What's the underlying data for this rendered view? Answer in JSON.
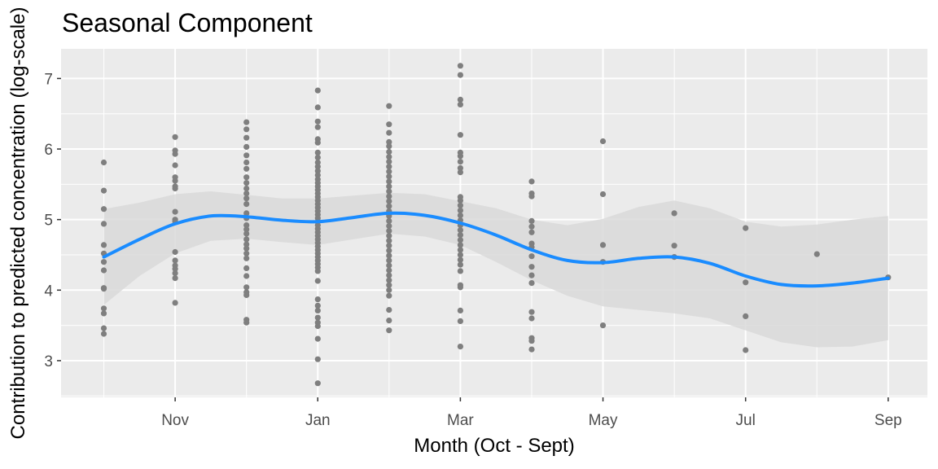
{
  "chart_data": {
    "type": "scatter",
    "title": "Seasonal Component",
    "xlabel": "Month (Oct - Sept)",
    "ylabel": "Contribution to predicted concentration (log-scale)",
    "x_ticks": [
      "Nov",
      "Jan",
      "Mar",
      "May",
      "Jul",
      "Sep"
    ],
    "x_tick_values": [
      11,
      13,
      15,
      17,
      19,
      21
    ],
    "y_ticks": [
      "3",
      "4",
      "5",
      "6",
      "7"
    ],
    "y_tick_values": [
      3,
      4,
      5,
      6,
      7
    ],
    "xlim": [
      9.4,
      21.55
    ],
    "ylim": [
      2.48,
      7.42
    ],
    "grid": true,
    "legend": "none",
    "colors": {
      "panel": "#ebebeb",
      "grid": "#ffffff",
      "points": "#7f7f7f",
      "smooth": "#1a8cff",
      "ribbon": "#d9d9d9"
    },
    "points": [
      {
        "x": 10,
        "y": [
          5.81,
          5.41,
          5.15,
          4.94,
          4.64,
          4.52,
          4.4,
          4.28,
          4.03,
          4.02,
          3.74,
          3.67,
          3.46,
          3.38
        ]
      },
      {
        "x": 11,
        "y": [
          6.17,
          5.98,
          5.93,
          5.77,
          5.6,
          5.55,
          5.47,
          5.44,
          5.11,
          5.0,
          4.97,
          4.54,
          4.42,
          4.35,
          4.3,
          4.24,
          4.17,
          3.82
        ]
      },
      {
        "x": 12,
        "y": [
          6.38,
          6.28,
          6.16,
          6.03,
          5.91,
          5.81,
          5.72,
          5.6,
          5.52,
          5.44,
          5.37,
          5.3,
          5.22,
          5.09,
          5.02,
          4.92,
          4.86,
          4.8,
          4.72,
          4.65,
          4.59,
          4.52,
          4.45,
          4.31,
          4.2,
          4.04,
          3.97,
          3.93,
          3.58,
          3.54
        ]
      },
      {
        "x": 13,
        "y": [
          6.83,
          6.59,
          6.39,
          6.31,
          6.14,
          6.09,
          5.95,
          5.88,
          5.81,
          5.75,
          5.69,
          5.63,
          5.57,
          5.52,
          5.47,
          5.42,
          5.37,
          5.32,
          5.27,
          5.22,
          5.17,
          5.12,
          5.07,
          5.02,
          4.97,
          4.92,
          4.87,
          4.82,
          4.77,
          4.72,
          4.67,
          4.62,
          4.57,
          4.52,
          4.47,
          4.42,
          4.37,
          4.32,
          4.27,
          4.13,
          3.87,
          3.78,
          3.71,
          3.61,
          3.54,
          3.49,
          3.31,
          3.02,
          2.68
        ]
      },
      {
        "x": 14,
        "y": [
          6.61,
          6.35,
          6.23,
          6.1,
          6.04,
          5.96,
          5.89,
          5.82,
          5.75,
          5.68,
          5.61,
          5.54,
          5.47,
          5.4,
          5.33,
          5.26,
          5.19,
          5.12,
          5.05,
          4.98,
          4.91,
          4.84,
          4.77,
          4.7,
          4.63,
          4.56,
          4.49,
          4.42,
          4.35,
          4.28,
          4.21,
          4.14,
          4.07,
          4.0,
          3.92,
          3.72,
          3.57,
          3.43
        ]
      },
      {
        "x": 15,
        "y": [
          7.18,
          7.05,
          6.7,
          6.63,
          6.2,
          5.95,
          5.9,
          5.82,
          5.73,
          5.67,
          5.32,
          5.27,
          5.2,
          5.13,
          5.06,
          4.99,
          4.92,
          4.85,
          4.78,
          4.71,
          4.64,
          4.57,
          4.5,
          4.43,
          4.36,
          4.27,
          4.07,
          4.04,
          3.71,
          3.56,
          3.2
        ]
      },
      {
        "x": 16,
        "y": [
          5.54,
          5.37,
          5.33,
          4.98,
          4.9,
          4.82,
          4.66,
          4.61,
          4.48,
          4.33,
          4.21,
          4.1,
          3.69,
          3.6,
          3.32,
          3.28,
          3.16
        ]
      },
      {
        "x": 17,
        "y": [
          6.11,
          5.36,
          4.64,
          4.4,
          3.5
        ]
      },
      {
        "x": 18,
        "y": [
          5.09,
          4.63,
          4.47
        ]
      },
      {
        "x": 19,
        "y": [
          4.88,
          4.11,
          3.63,
          3.15
        ]
      },
      {
        "x": 20,
        "y": [
          4.51
        ]
      },
      {
        "x": 21,
        "y": [
          4.18
        ]
      }
    ],
    "smooth": {
      "x": [
        10,
        10.5,
        11,
        11.5,
        12,
        12.5,
        13,
        13.5,
        14,
        14.5,
        15,
        15.5,
        16,
        16.5,
        17,
        17.5,
        18,
        18.5,
        19,
        19.5,
        20,
        20.5,
        21
      ],
      "y": [
        4.47,
        4.72,
        4.94,
        5.05,
        5.04,
        4.99,
        4.97,
        5.03,
        5.09,
        5.06,
        4.95,
        4.78,
        4.57,
        4.42,
        4.39,
        4.45,
        4.47,
        4.38,
        4.2,
        4.08,
        4.06,
        4.1,
        4.17
      ],
      "lower": [
        3.79,
        4.2,
        4.52,
        4.7,
        4.73,
        4.68,
        4.64,
        4.72,
        4.8,
        4.76,
        4.64,
        4.4,
        4.14,
        3.92,
        3.77,
        3.72,
        3.67,
        3.6,
        3.43,
        3.26,
        3.19,
        3.2,
        3.29
      ],
      "upper": [
        5.15,
        5.24,
        5.36,
        5.4,
        5.35,
        5.3,
        5.3,
        5.34,
        5.38,
        5.36,
        5.26,
        5.16,
        5.0,
        4.92,
        5.01,
        5.18,
        5.27,
        5.16,
        4.97,
        4.9,
        4.93,
        5.0,
        5.05
      ]
    }
  }
}
